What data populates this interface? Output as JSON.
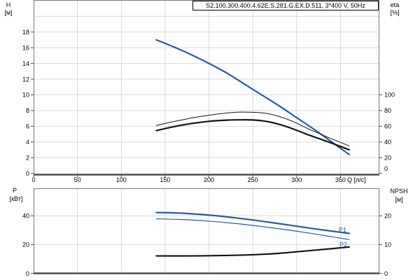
{
  "title": "S2.100.300.400.4.62E.S.281.G.EX.D.511, 3*400 V, 50Hz",
  "colors": {
    "curve_blue": "#2a5a9d",
    "curve_black": "#151515",
    "grid": "#d9d9d9",
    "plot_border": "#7a7a7a",
    "axis_line": "#4d4d4d",
    "text": "#000000",
    "background": "#ffffff"
  },
  "chart_data": [
    {
      "type": "line",
      "name": "head-efficiency-chart",
      "grid": true,
      "legend": "none",
      "x_axis": {
        "label": "Q [л/с]",
        "min": 0,
        "max": 394,
        "ticks": [
          0,
          50,
          100,
          150,
          200,
          250,
          300,
          350
        ]
      },
      "y_left": {
        "label_lines": [
          "H",
          "[м]"
        ],
        "min": 0,
        "max": 22,
        "ticks": [
          0,
          2,
          4,
          6,
          8,
          10,
          12,
          14,
          16,
          18
        ],
        "grid_step": 2
      },
      "y_right": {
        "label_lines": [
          "eta",
          "[%]"
        ],
        "min": 0,
        "max": 100,
        "ticks": [
          0,
          20,
          40,
          60,
          80,
          100
        ]
      },
      "series": [
        {
          "name": "H",
          "axis": "left",
          "color": "blue",
          "width": 2.2,
          "points": [
            [
              140,
              17.0
            ],
            [
              160,
              16.1
            ],
            [
              180,
              15.1
            ],
            [
              200,
              14.0
            ],
            [
              220,
              12.8
            ],
            [
              240,
              11.4
            ],
            [
              260,
              10.0
            ],
            [
              280,
              8.6
            ],
            [
              300,
              7.1
            ],
            [
              320,
              5.6
            ],
            [
              340,
              4.0
            ],
            [
              360,
              2.4
            ]
          ]
        },
        {
          "name": "eta1",
          "axis": "right",
          "color": "black",
          "width": 1,
          "points": [
            [
              140,
              61
            ],
            [
              160,
              66
            ],
            [
              180,
              70.5
            ],
            [
              200,
              74
            ],
            [
              220,
              76.8
            ],
            [
              235,
              78
            ],
            [
              250,
              77.8
            ],
            [
              265,
              76.5
            ],
            [
              280,
              72.5
            ],
            [
              295,
              66.5
            ],
            [
              310,
              58.5
            ],
            [
              325,
              51
            ],
            [
              340,
              44
            ],
            [
              360,
              35
            ]
          ]
        },
        {
          "name": "eta2",
          "axis": "right",
          "color": "black",
          "width": 2.2,
          "points": [
            [
              140,
              54.5
            ],
            [
              160,
              59.5
            ],
            [
              180,
              63.5
            ],
            [
              200,
              66.3
            ],
            [
              220,
              67.8
            ],
            [
              235,
              68.2
            ],
            [
              250,
              68
            ],
            [
              265,
              66.3
            ],
            [
              280,
              62.5
            ],
            [
              295,
              57
            ],
            [
              310,
              50.5
            ],
            [
              325,
              44.5
            ],
            [
              340,
              38.5
            ],
            [
              360,
              30
            ]
          ]
        }
      ]
    },
    {
      "type": "line",
      "name": "power-npsh-chart",
      "grid": true,
      "legend": "none",
      "x_axis": {
        "label": "",
        "min": 0,
        "max": 394,
        "ticks": [
          0,
          50,
          100,
          150,
          200,
          250,
          300,
          350
        ]
      },
      "y_left": {
        "label_lines": [
          "P",
          "[кВт]"
        ],
        "min": 0,
        "max": 58.8,
        "ticks": [
          0,
          20,
          40
        ],
        "grid_step": 20
      },
      "y_right": {
        "label_lines": [
          "NPSH",
          "[м]"
        ],
        "min": 0,
        "max": 29.4,
        "ticks": [
          0,
          10,
          20
        ]
      },
      "series": [
        {
          "name": "P1",
          "axis": "left",
          "color": "blue",
          "width": 2.2,
          "points": [
            [
              140,
              42.3
            ],
            [
              170,
              41.8
            ],
            [
              200,
              40.5
            ],
            [
              230,
              38.6
            ],
            [
              260,
              36.3
            ],
            [
              290,
              33.7
            ],
            [
              320,
              31.0
            ],
            [
              340,
              29.4
            ],
            [
              360,
              27.8
            ]
          ]
        },
        {
          "name": "P2",
          "axis": "left",
          "color": "blue",
          "width": 1.2,
          "points": [
            [
              140,
              37.9
            ],
            [
              170,
              37.4
            ],
            [
              200,
              36.3
            ],
            [
              230,
              34.7
            ],
            [
              260,
              32.6
            ],
            [
              290,
              30.2
            ],
            [
              320,
              27.5
            ],
            [
              340,
              25.5
            ],
            [
              360,
              23.5
            ]
          ]
        },
        {
          "name": "NPSH",
          "axis": "right",
          "color": "black",
          "width": 2.2,
          "points": [
            [
              140,
              6.1
            ],
            [
              180,
              6.1
            ],
            [
              220,
              6.25
            ],
            [
              250,
              6.5
            ],
            [
              280,
              7.0
            ],
            [
              310,
              7.8
            ],
            [
              340,
              8.6
            ],
            [
              360,
              9.2
            ]
          ]
        }
      ],
      "annotations": [
        {
          "text": "P1",
          "q": 348,
          "value": 30.2,
          "color": "blue"
        },
        {
          "text": "P2",
          "q": 349,
          "value": 20.2,
          "color": "blue"
        }
      ]
    }
  ]
}
